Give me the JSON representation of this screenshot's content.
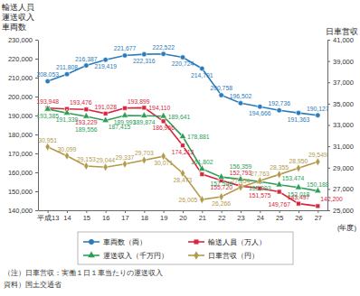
{
  "chart_data": {
    "type": "line",
    "y_label": [
      "輸送人員",
      "運送収入",
      "車両数"
    ],
    "y2_label": "日車営収",
    "x_label": "(年度)",
    "categories": [
      "平成13",
      "14",
      "15",
      "16",
      "17",
      "18",
      "19",
      "20",
      "21",
      "22",
      "23",
      "24",
      "25",
      "26",
      "27"
    ],
    "series": [
      {
        "name": "車両数（両）",
        "color": "#2b7bba",
        "marker": "circle",
        "values": [
          208053,
          211808,
          216387,
          219419,
          221677,
          222316,
          222522,
          220724,
          214791,
          200758,
          196502,
          194666,
          192736,
          191363,
          190127
        ],
        "value_labels": [
          "208,053",
          "211,808",
          "216,387",
          "219,419",
          "221,677",
          "222,316",
          "222,522",
          "220,724",
          "214,791",
          "200,758",
          "196,502",
          "194,666",
          "192,736",
          "191,363",
          "190,127"
        ]
      },
      {
        "name": "輸送人員（万人）",
        "color": "#d7263d",
        "marker": "square",
        "values": [
          193948,
          193476,
          193229,
          191028,
          193899,
          194110,
          186966,
          174213,
          159000,
          155720,
          152793,
          151575,
          149767,
          143497,
          142200
        ],
        "value_labels": [
          "193,948",
          "193,476",
          "193,229",
          "191,028",
          "193,899",
          "194,110",
          "186,966",
          "174,213",
          null,
          "155,720",
          "152,793",
          "151,575",
          "149,767",
          "143,497",
          "142,200"
        ]
      },
      {
        "name": "運送収入（千万円）",
        "color": "#2e9e57",
        "marker": "triangle",
        "values": [
          193385,
          191339,
          189556,
          187415,
          189993,
          189874,
          189641,
          178881,
          161802,
          157546,
          156359,
          155093,
          153474,
          152018,
          150188
        ],
        "value_labels": [
          "193,385",
          "191,339",
          "189,556",
          "187,415",
          "189,993",
          "189,874",
          "189,641",
          "178,881",
          "161,802",
          "157,546",
          "156,359",
          "155,093",
          "153,474",
          "152,018",
          "150,188"
        ]
      },
      {
        "name": "日車営収（円）",
        "color": "#b39a4a",
        "marker": "diamond",
        "axis": "y2",
        "values": [
          30951,
          30099,
          29153,
          29044,
          29337,
          29703,
          30071,
          28473,
          26005,
          26266,
          27154,
          27763,
          28355,
          28950,
          29549
        ],
        "value_labels": [
          "30,951",
          "30,099",
          "29,153",
          "29,044",
          "29,337",
          "29,703",
          "30,071",
          "28,473",
          "26,005",
          "26,266",
          "27,154",
          "27,763",
          "28,355",
          "28,950",
          "29,549"
        ]
      }
    ],
    "ylim": [
      140000,
      230000
    ],
    "yticks": [
      {
        "value": 140000,
        "label": "140,000"
      },
      {
        "value": 150000,
        "label": "150,000"
      },
      {
        "value": 160000,
        "label": "160,000"
      },
      {
        "value": 170000,
        "label": "170,000"
      },
      {
        "value": 180000,
        "label": "180,000"
      },
      {
        "value": 190000,
        "label": "190,000"
      },
      {
        "value": 200000,
        "label": "200,000"
      },
      {
        "value": 210000,
        "label": "210,000"
      },
      {
        "value": 220000,
        "label": "220,000"
      },
      {
        "value": 230000,
        "label": "230,000"
      }
    ],
    "y2lim": [
      25000,
      41000
    ],
    "y2ticks": [
      {
        "value": 25000,
        "label": "25,000"
      },
      {
        "value": 27000,
        "label": "27,000"
      },
      {
        "value": 29000,
        "label": "29,000"
      },
      {
        "value": 31000,
        "label": "31,000"
      },
      {
        "value": 33000,
        "label": "33,000"
      },
      {
        "value": 35000,
        "label": "35,000"
      },
      {
        "value": 37000,
        "label": "37,000"
      },
      {
        "value": 39000,
        "label": "39,000"
      },
      {
        "value": 41000,
        "label": "41,000"
      }
    ],
    "grid": false,
    "legend": "bottom",
    "data_labels": true,
    "notes": [
      "（注）日車営収：実働１日１車当たりの運送収入",
      "資料）国土交通省"
    ]
  }
}
